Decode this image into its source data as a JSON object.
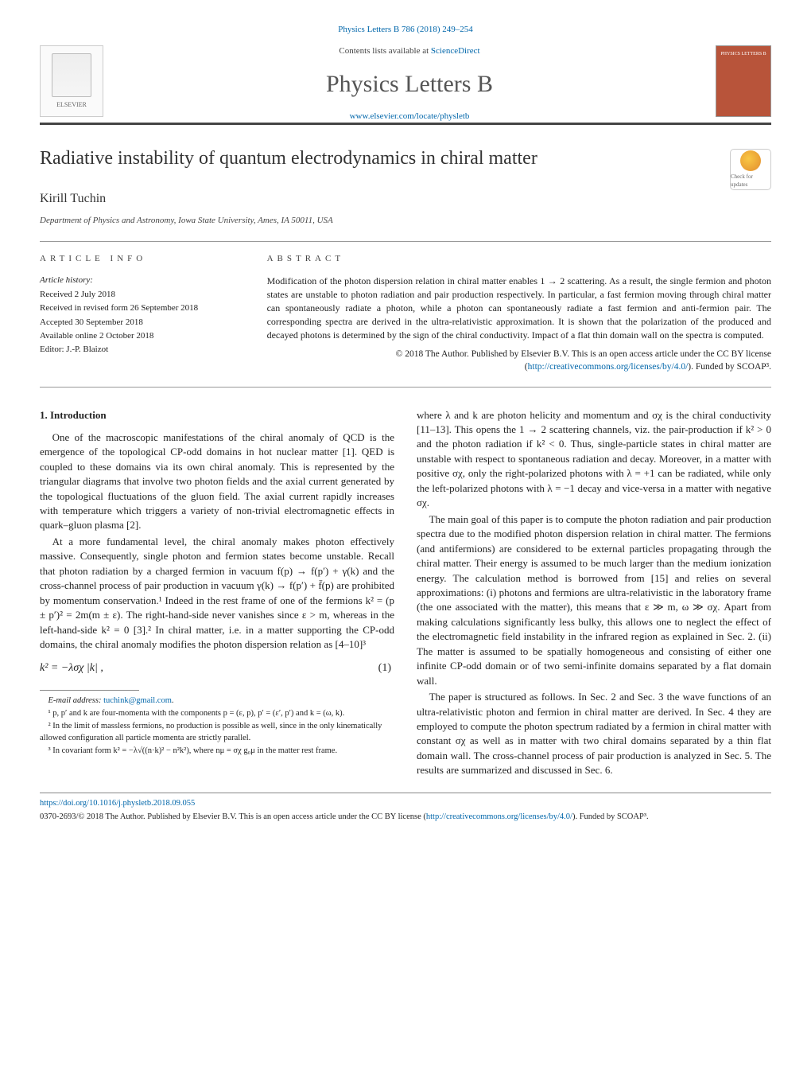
{
  "citation": "Physics Letters B 786 (2018) 249–254",
  "header": {
    "elsevier": "ELSEVIER",
    "contents_prefix": "Contents lists available at ",
    "contents_link": "ScienceDirect",
    "journal_title": "Physics Letters B",
    "journal_url": "www.elsevier.com/locate/physletb",
    "cover_label": "PHYSICS LETTERS B"
  },
  "title": "Radiative instability of quantum electrodynamics in chiral matter",
  "updates_badge": "Check for updates",
  "author": "Kirill Tuchin",
  "affiliation": "Department of Physics and Astronomy, Iowa State University, Ames, IA 50011, USA",
  "info": {
    "label": "article info",
    "history_label": "Article history:",
    "h1": "Received 2 July 2018",
    "h2": "Received in revised form 26 September 2018",
    "h3": "Accepted 30 September 2018",
    "h4": "Available online 2 October 2018",
    "h5": "Editor: J.-P. Blaizot"
  },
  "abstract": {
    "label": "abstract",
    "text": "Modification of the photon dispersion relation in chiral matter enables 1 → 2 scattering. As a result, the single fermion and photon states are unstable to photon radiation and pair production respectively. In particular, a fast fermion moving through chiral matter can spontaneously radiate a photon, while a photon can spontaneously radiate a fast fermion and anti-fermion pair. The corresponding spectra are derived in the ultra-relativistic approximation. It is shown that the polarization of the produced and decayed photons is determined by the sign of the chiral conductivity. Impact of a flat thin domain wall on the spectra is computed.",
    "copyright_pre": "© 2018 The Author. Published by Elsevier B.V. This is an open access article under the CC BY license (",
    "copyright_url": "http://creativecommons.org/licenses/by/4.0/",
    "copyright_post": "). Funded by SCOAP³."
  },
  "body": {
    "sec1_heading": "1. Introduction",
    "left_p1": "One of the macroscopic manifestations of the chiral anomaly of QCD is the emergence of the topological CP-odd domains in hot nuclear matter [1]. QED is coupled to these domains via its own chiral anomaly. This is represented by the triangular diagrams that involve two photon fields and the axial current generated by the topological fluctuations of the gluon field. The axial current rapidly increases with temperature which triggers a variety of non-trivial electromagnetic effects in quark–gluon plasma [2].",
    "left_p2": "At a more fundamental level, the chiral anomaly makes photon effectively massive. Consequently, single photon and fermion states become unstable. Recall that photon radiation by a charged fermion in vacuum f(p) → f(p′) + γ(k) and the cross-channel process of pair production in vacuum γ(k) → f(p′) + f̄(p) are prohibited by momentum conservation.¹ Indeed in the rest frame of one of the fermions k² = (p ± p′)² = 2m(m ± ε). The right-hand-side never vanishes since ε > m, whereas in the left-hand-side k² = 0 [3].² In chiral matter, i.e. in a matter supporting the CP-odd domains, the chiral anomaly modifies the photon dispersion relation as [4–10]³",
    "eq1": "k² = −λσχ |k| ,",
    "eq1_num": "(1)",
    "right_p1": "where λ and k are photon helicity and momentum and σχ is the chiral conductivity [11–13]. This opens the 1 → 2 scattering channels, viz. the pair-production if k² > 0 and the photon radiation if k² < 0. Thus, single-particle states in chiral matter are unstable with respect to spontaneous radiation and decay. Moreover, in a matter with positive σχ, only the right-polarized photons with λ = +1 can be radiated, while only the left-polarized photons with λ = −1 decay and vice-versa in a matter with negative σχ.",
    "right_p2": "The main goal of this paper is to compute the photon radiation and pair production spectra due to the modified photon dispersion relation in chiral matter. The fermions (and antifermions) are considered to be external particles propagating through the chiral matter. Their energy is assumed to be much larger than the medium ionization energy. The calculation method is borrowed from [15] and relies on several approximations: (i) photons and fermions are ultra-relativistic in the laboratory frame (the one associated with the matter), this means that ε ≫ m, ω ≫ σχ. Apart from making calculations significantly less bulky, this allows one to neglect the effect of the electromagnetic field instability in the infrared region as explained in Sec. 2. (ii) The matter is assumed to be spatially homogeneous and consisting of either one infinite CP-odd domain or of two semi-infinite domains separated by a flat domain wall.",
    "right_p3": "The paper is structured as follows. In Sec. 2 and Sec. 3 the wave functions of an ultra-relativistic photon and fermion in chiral matter are derived. In Sec. 4 they are employed to compute the photon spectrum radiated by a fermion in chiral matter with constant σχ as well as in matter with two chiral domains separated by a thin flat domain wall. The cross-channel process of pair production is analyzed in Sec. 5. The results are summarized and discussed in Sec. 6."
  },
  "footnotes": {
    "email_label": "E-mail address: ",
    "email": "tuchink@gmail.com",
    "fn1": "¹ p, p′ and k are four-momenta with the components p = (ε, p), p′ = (ε′, p′) and k = (ω, k).",
    "fn2": "² In the limit of massless fermions, no production is possible as well, since in the only kinematically allowed configuration all particle momenta are strictly parallel.",
    "fn3": "³ In covariant form k² = −λ√((n·k)² − n²k²), where nμ = σχ g₀μ in the matter rest frame."
  },
  "bottom": {
    "doi": "https://doi.org/10.1016/j.physletb.2018.09.055",
    "issn_pre": "0370-2693/© 2018 The Author. Published by Elsevier B.V. This is an open access article under the CC BY license (",
    "issn_url": "http://creativecommons.org/licenses/by/4.0/",
    "issn_post": "). Funded by SCOAP³."
  },
  "colors": {
    "link": "#0066aa",
    "rule": "#444444",
    "text": "#222222",
    "cover_bg": "#b8543a"
  }
}
